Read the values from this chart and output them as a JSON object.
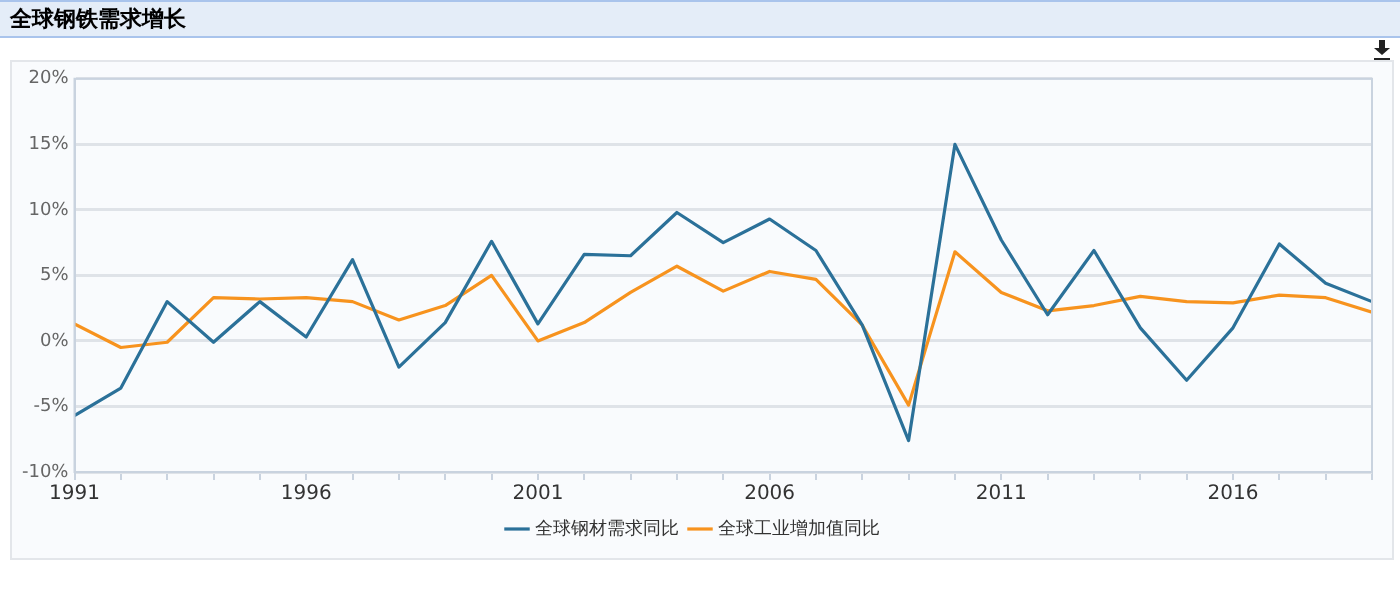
{
  "chart_data": {
    "type": "line",
    "title": "全球钢铁需求增长",
    "x": [
      1991,
      1992,
      1993,
      1994,
      1995,
      1996,
      1997,
      1998,
      1999,
      2000,
      2001,
      2002,
      2003,
      2004,
      2005,
      2006,
      2007,
      2008,
      2009,
      2010,
      2011,
      2012,
      2013,
      2014,
      2015,
      2016,
      2017,
      2018,
      2019
    ],
    "series": [
      {
        "name": "全球钢材需求同比",
        "color": "#2b7199",
        "values": [
          -5.7,
          -3.6,
          3.0,
          -0.1,
          3.0,
          0.3,
          6.2,
          -2.0,
          1.4,
          7.6,
          1.3,
          6.6,
          6.5,
          9.8,
          7.5,
          9.3,
          6.9,
          1.2,
          -7.6,
          15.0,
          7.7,
          2.0,
          6.9,
          1.0,
          -3.0,
          1.0,
          7.4,
          4.4,
          3.0
        ]
      },
      {
        "name": "全球工业增加值同比",
        "color": "#f7931e",
        "values": [
          1.3,
          -0.5,
          -0.1,
          3.3,
          3.2,
          3.3,
          3.0,
          1.6,
          2.7,
          5.0,
          0.0,
          1.4,
          3.7,
          5.7,
          3.8,
          5.3,
          4.7,
          1.2,
          -4.9,
          6.8,
          3.7,
          2.3,
          2.7,
          3.4,
          3.0,
          2.9,
          3.5,
          3.3,
          2.2
        ]
      }
    ],
    "xlim": [
      1991,
      2019
    ],
    "xticks": [
      1991,
      {
        "value": 1992,
        "label": null
      },
      {
        "value": 1993,
        "label": null
      },
      {
        "value": 1994,
        "label": null
      },
      {
        "value": 1995,
        "label": null
      },
      1996,
      {
        "value": 1997,
        "label": null
      },
      {
        "value": 1998,
        "label": null
      },
      {
        "value": 1999,
        "label": null
      },
      {
        "value": 2000,
        "label": null
      },
      2001,
      {
        "value": 2002,
        "label": null
      },
      {
        "value": 2003,
        "label": null
      },
      {
        "value": 2004,
        "label": null
      },
      {
        "value": 2005,
        "label": null
      },
      2006,
      {
        "value": 2007,
        "label": null
      },
      {
        "value": 2008,
        "label": null
      },
      {
        "value": 2009,
        "label": null
      },
      {
        "value": 2010,
        "label": null
      },
      2011,
      {
        "value": 2012,
        "label": null
      },
      {
        "value": 2013,
        "label": null
      },
      {
        "value": 2014,
        "label": null
      },
      {
        "value": 2015,
        "label": null
      },
      2016,
      {
        "value": 2017,
        "label": null
      },
      {
        "value": 2018,
        "label": null
      },
      {
        "value": 2019,
        "label": null
      }
    ],
    "ylim": [
      -10,
      20
    ],
    "yticks": [
      {
        "value": -10,
        "label": "-10%"
      },
      {
        "value": -5,
        "label": "-5%"
      },
      {
        "value": 0,
        "label": "0%"
      },
      {
        "value": 5,
        "label": "5%"
      },
      {
        "value": 10,
        "label": "10%"
      },
      {
        "value": 15,
        "label": "15%"
      },
      {
        "value": 20,
        "label": "20%"
      }
    ],
    "grid": "y",
    "legend": "bottom",
    "marker": "none",
    "line_style": "solid"
  }
}
